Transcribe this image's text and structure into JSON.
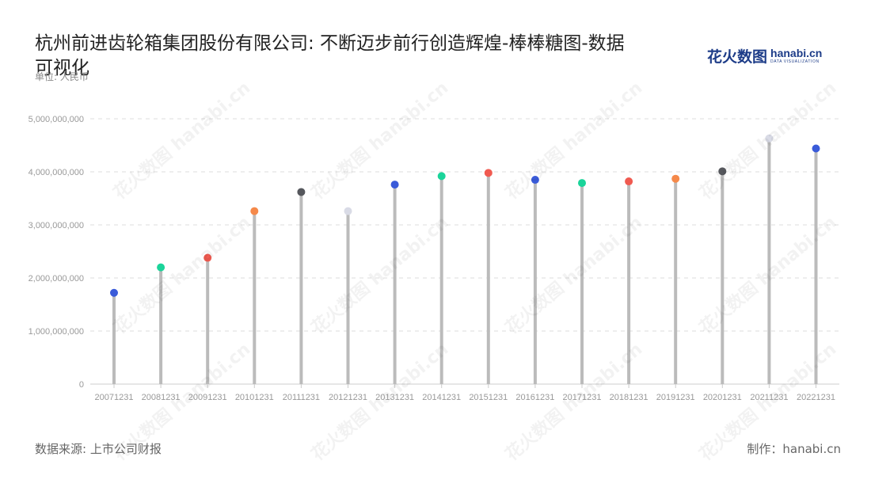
{
  "title": "杭州前进齿轮箱集团股份有限公司: 不断迈步前行创造辉煌-棒棒糖图-数据可视化",
  "unit_label": "单位: 人民币",
  "logo": {
    "cn": "花火数图",
    "en": "hanabi.cn",
    "sub": "DATA VISUALIZATION"
  },
  "source": "数据来源: 上市公司财报",
  "credit": "制作：hanabi.cn",
  "chart_data": {
    "type": "lollipop",
    "categories": [
      "20071231",
      "20081231",
      "20091231",
      "20101231",
      "20111231",
      "20121231",
      "20131231",
      "20141231",
      "20151231",
      "20161231",
      "20171231",
      "20181231",
      "20191231",
      "20201231",
      "20211231",
      "20221231"
    ],
    "values": [
      1720000000,
      2200000000,
      2380000000,
      3260000000,
      3620000000,
      3260000000,
      3760000000,
      3920000000,
      3980000000,
      3850000000,
      3790000000,
      3820000000,
      3870000000,
      4010000000,
      4630000000,
      4440000000
    ],
    "dot_colors": [
      "#3a5bd9",
      "#1bd49a",
      "#f05a50",
      "#f5894a",
      "#55575c",
      "#d9dbe6",
      "#3a5bd9",
      "#1bd49a",
      "#f05a50",
      "#3a5bd9",
      "#1bd49a",
      "#f05a50",
      "#f5894a",
      "#55575c",
      "#d9dbe6",
      "#3a5bd9"
    ],
    "stem_color": "#bbbbbb",
    "y_ticks": [
      "0",
      "1,000,000,000",
      "2,000,000,000",
      "3,000,000,000",
      "4,000,000,000",
      "5,000,000,000"
    ],
    "ylim": [
      0,
      5000000000
    ],
    "grid": true
  }
}
